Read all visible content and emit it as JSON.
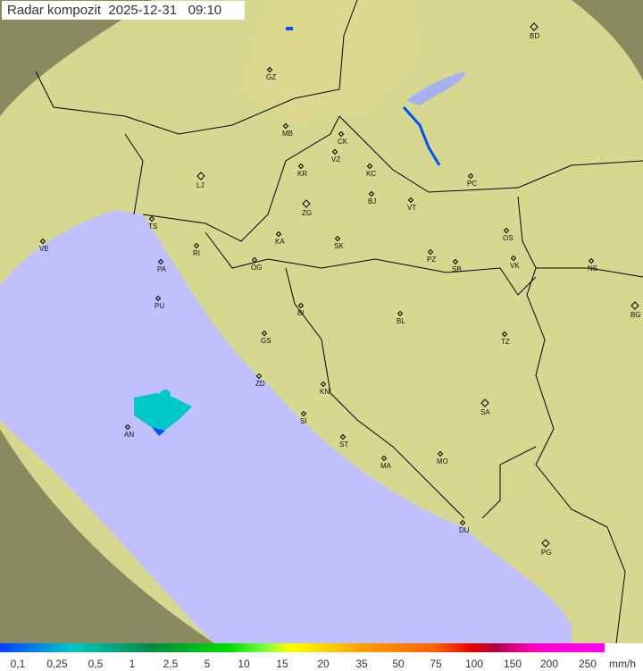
{
  "title": "Radar kompozit  2025-12-31   09:10",
  "colors": {
    "sea": "#c0c0ff",
    "land": "#d8d890",
    "outside": "#8a8a60",
    "border": "#000000",
    "echo_light": "#00c8c8",
    "echo_dark": "#0050ff"
  },
  "cities": [
    {
      "code": "BD",
      "capital": true
    },
    {
      "code": "GZ"
    },
    {
      "code": "MB"
    },
    {
      "code": "CK"
    },
    {
      "code": "VZ"
    },
    {
      "code": "KR"
    },
    {
      "code": "KC"
    },
    {
      "code": "PC"
    },
    {
      "code": "LJ",
      "capital": true
    },
    {
      "code": "TS"
    },
    {
      "code": "ZG",
      "capital": true
    },
    {
      "code": "BJ"
    },
    {
      "code": "VT"
    },
    {
      "code": "VE"
    },
    {
      "code": "RI"
    },
    {
      "code": "KA"
    },
    {
      "code": "SK"
    },
    {
      "code": "OS"
    },
    {
      "code": "PA"
    },
    {
      "code": "OG"
    },
    {
      "code": "PZ"
    },
    {
      "code": "SB"
    },
    {
      "code": "VK"
    },
    {
      "code": "NS"
    },
    {
      "code": "PU"
    },
    {
      "code": "BI"
    },
    {
      "code": "BL"
    },
    {
      "code": "BG",
      "capital": true
    },
    {
      "code": "GS"
    },
    {
      "code": "TZ"
    },
    {
      "code": "ZD"
    },
    {
      "code": "KN"
    },
    {
      "code": "SA",
      "capital": true
    },
    {
      "code": "SI"
    },
    {
      "code": "AN"
    },
    {
      "code": "ST"
    },
    {
      "code": "MO"
    },
    {
      "code": "MA"
    },
    {
      "code": "DU"
    },
    {
      "code": "PG",
      "capital": true
    }
  ],
  "legend": {
    "unit": "mm/h",
    "ticks": [
      "0,1",
      "0,25",
      "0,5",
      "1",
      "2,5",
      "5",
      "10",
      "15",
      "20",
      "35",
      "50",
      "75",
      "100",
      "150",
      "200",
      "250"
    ]
  }
}
